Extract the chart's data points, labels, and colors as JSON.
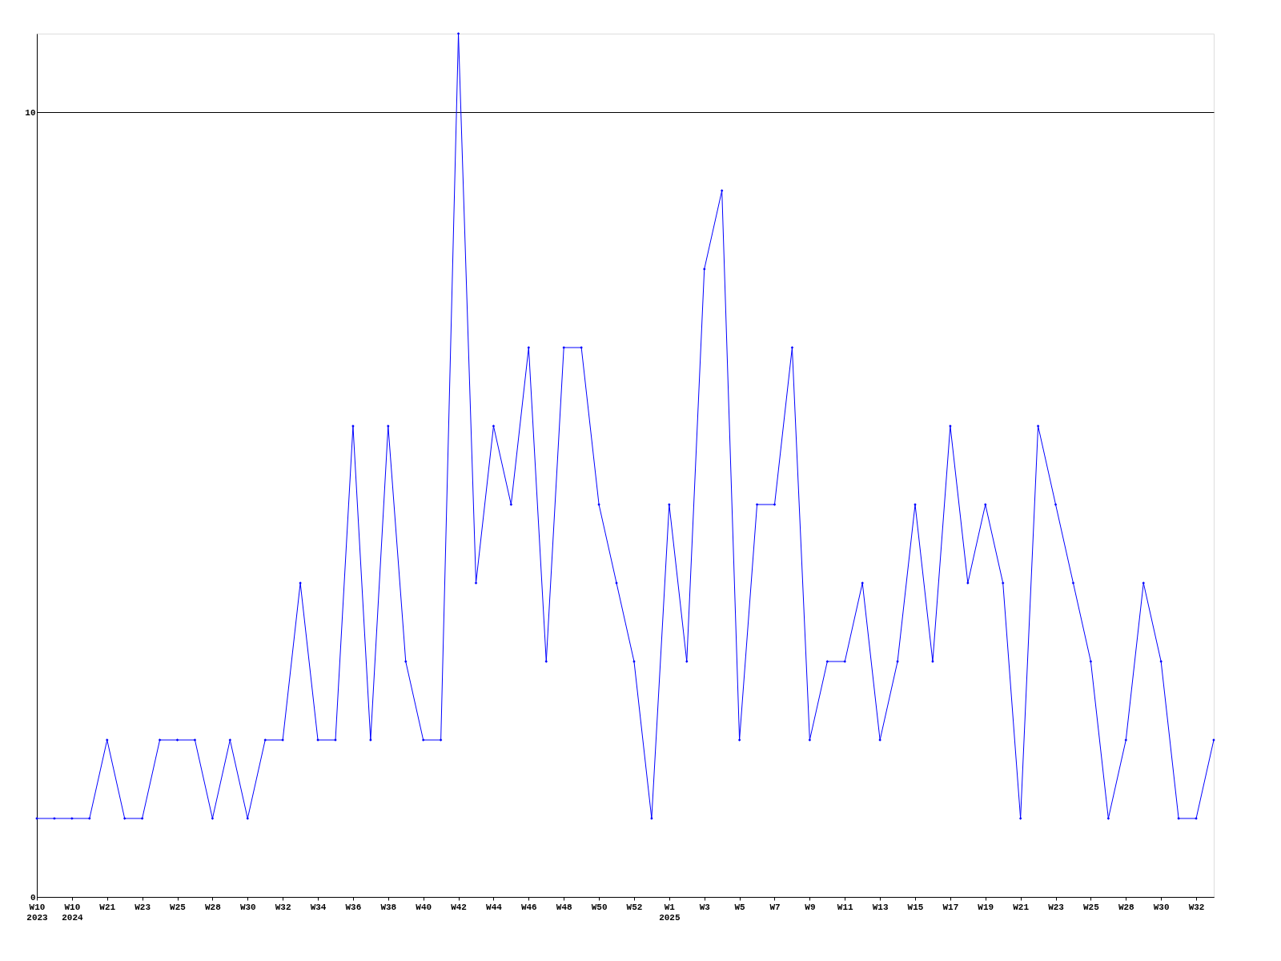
{
  "chart_data": {
    "type": "line",
    "categories": [
      "W10\n2023",
      null,
      "W10\n2024",
      null,
      "W21",
      null,
      "W23",
      null,
      "W25",
      null,
      "W28",
      null,
      "W30",
      null,
      "W32",
      null,
      "W34",
      null,
      "W36",
      null,
      "W38",
      null,
      "W40",
      null,
      "W42",
      null,
      "W44",
      null,
      "W46",
      null,
      "W48",
      null,
      "W50",
      null,
      "W52",
      null,
      "W1\n2025",
      null,
      "W3",
      null,
      "W5",
      null,
      "W7",
      null,
      "W9",
      null,
      "W11",
      null,
      "W13",
      null,
      "W15",
      null,
      "W17",
      null,
      "W19",
      null,
      "W21",
      null,
      "W23",
      null,
      "W25",
      null,
      "W28",
      null,
      "W30",
      null,
      "W32",
      null
    ],
    "series": [
      {
        "color": "#0000ff",
        "values": [
          1,
          1,
          1,
          1,
          2,
          1,
          1,
          2,
          2,
          2,
          1,
          2,
          1,
          2,
          2,
          4,
          2,
          2,
          6,
          2,
          6,
          3,
          2,
          2,
          11,
          4,
          6,
          5,
          7,
          3,
          7,
          7,
          5,
          4,
          3,
          1,
          5,
          3,
          8,
          9,
          2,
          5,
          5,
          7,
          2,
          3,
          3,
          4,
          2,
          3,
          5,
          3,
          6,
          4,
          5,
          4,
          1,
          6,
          5,
          4,
          3,
          1,
          2,
          4,
          3,
          1,
          1,
          2
        ]
      }
    ],
    "ylim": [
      0,
      11
    ],
    "yticks": [
      0,
      10
    ],
    "grid": "y",
    "marker": "diamond",
    "line_style": "solid"
  }
}
